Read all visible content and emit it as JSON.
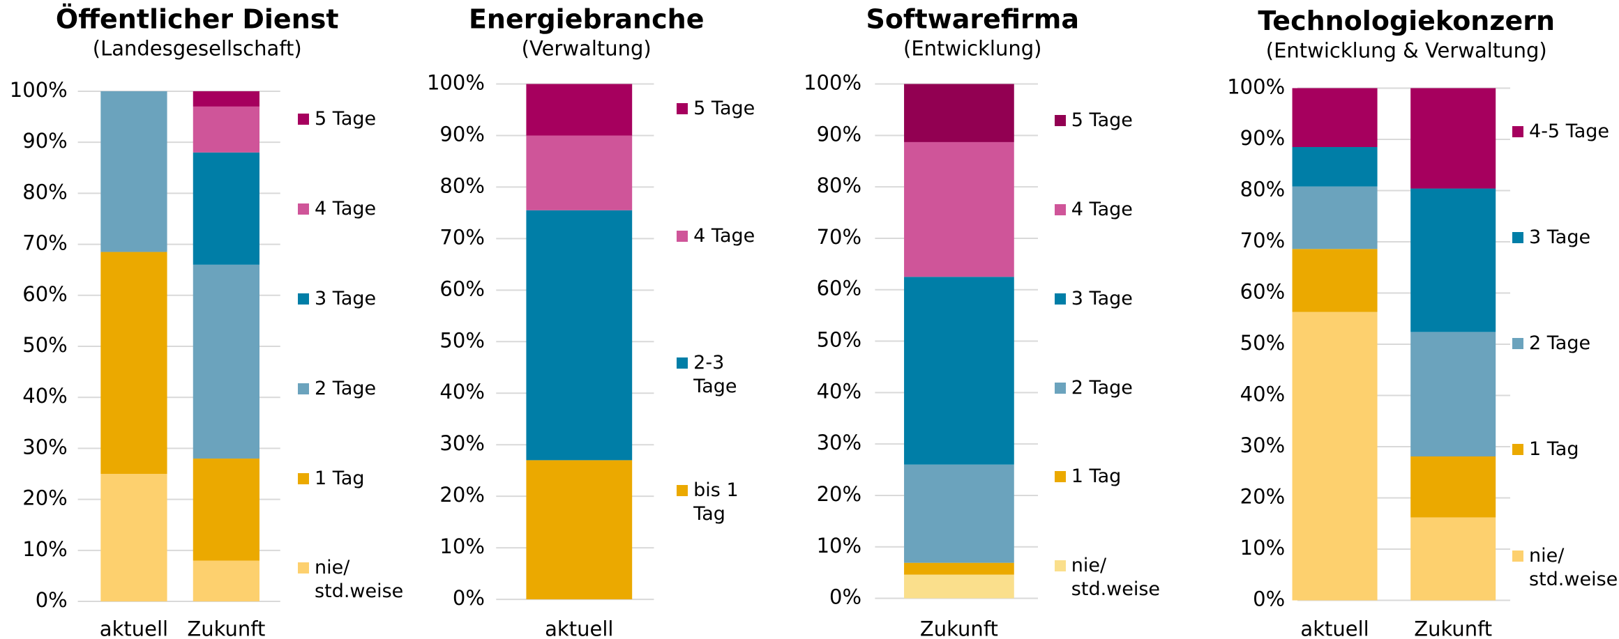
{
  "chart_data": [
    {
      "type": "stacked_bar",
      "title": "Öffentlicher Dienst",
      "subtitle": "(Landesgesellschaft)",
      "categories": [
        "aktuell",
        "Zukunft"
      ],
      "ylim": [
        0,
        100
      ],
      "yticks": [
        {
          "value": 0,
          "label": "0%"
        },
        {
          "value": 10,
          "label": "10%"
        },
        {
          "value": 20,
          "label": "20%"
        },
        {
          "value": 30,
          "label": "30%"
        },
        {
          "value": 40,
          "label": "40%"
        },
        {
          "value": 50,
          "label": "50%"
        },
        {
          "value": 60,
          "label": "60%"
        },
        {
          "value": 70,
          "label": "70%"
        },
        {
          "value": 80,
          "label": "80%"
        },
        {
          "value": 90,
          "label": "90%"
        },
        {
          "value": 100,
          "label": "100%"
        }
      ],
      "grid": true,
      "series": [
        {
          "name": "nie/ std.weise",
          "color": "#fdd06e",
          "values": [
            25,
            8
          ]
        },
        {
          "name": "1 Tag",
          "color": "#eba900",
          "values": [
            43.5,
            20
          ]
        },
        {
          "name": "2 Tage",
          "color": "#6ba3bd",
          "values": [
            31.5,
            38
          ]
        },
        {
          "name": "3 Tage",
          "color": "#007ea7",
          "values": [
            0,
            22
          ]
        },
        {
          "name": "4 Tage",
          "color": "#cf5599",
          "values": [
            0,
            9
          ]
        },
        {
          "name": "5 Tage",
          "color": "#a6005e",
          "values": [
            0,
            3
          ]
        }
      ]
    },
    {
      "type": "stacked_bar",
      "title": "Energiebranche",
      "subtitle": "(Verwaltung)",
      "categories": [
        "aktuell"
      ],
      "ylim": [
        0,
        100
      ],
      "yticks": [
        {
          "value": 0,
          "label": "0%"
        },
        {
          "value": 10,
          "label": "10%"
        },
        {
          "value": 20,
          "label": "20%"
        },
        {
          "value": 30,
          "label": "30%"
        },
        {
          "value": 40,
          "label": "40%"
        },
        {
          "value": 50,
          "label": "50%"
        },
        {
          "value": 60,
          "label": "60%"
        },
        {
          "value": 70,
          "label": "70%"
        },
        {
          "value": 80,
          "label": "80%"
        },
        {
          "value": 90,
          "label": "90%"
        },
        {
          "value": 100,
          "label": "100%"
        }
      ],
      "grid": true,
      "series": [
        {
          "name": "bis 1 Tag",
          "color": "#eba900",
          "values": [
            27
          ]
        },
        {
          "name": "2-3 Tage",
          "color": "#007ea7",
          "values": [
            48.5
          ]
        },
        {
          "name": "4 Tage",
          "color": "#cf5599",
          "values": [
            14.5
          ]
        },
        {
          "name": "5 Tage",
          "color": "#a6005e",
          "values": [
            10
          ]
        }
      ]
    },
    {
      "type": "stacked_bar",
      "title": "Softwarefirma",
      "subtitle": "(Entwicklung)",
      "categories": [
        "Zukunft"
      ],
      "ylim": [
        0,
        100
      ],
      "yticks": [
        {
          "value": 0,
          "label": "0%"
        },
        {
          "value": 10,
          "label": "10%"
        },
        {
          "value": 20,
          "label": "20%"
        },
        {
          "value": 30,
          "label": "30%"
        },
        {
          "value": 40,
          "label": "40%"
        },
        {
          "value": 50,
          "label": "50%"
        },
        {
          "value": 60,
          "label": "60%"
        },
        {
          "value": 70,
          "label": "70%"
        },
        {
          "value": 80,
          "label": "80%"
        },
        {
          "value": 90,
          "label": "90%"
        },
        {
          "value": 100,
          "label": "100%"
        }
      ],
      "grid": true,
      "series": [
        {
          "name": "nie/ std.weise",
          "color": "#fadf8c",
          "values": [
            4.6
          ]
        },
        {
          "name": "1 Tag",
          "color": "#eba900",
          "values": [
            2.3
          ]
        },
        {
          "name": "2 Tage",
          "color": "#6ba3bd",
          "values": [
            19.1
          ]
        },
        {
          "name": "3 Tage",
          "color": "#007ea7",
          "values": [
            36.5
          ]
        },
        {
          "name": "4 Tage",
          "color": "#cf5599",
          "values": [
            26.2
          ]
        },
        {
          "name": "5 Tage",
          "color": "#920052",
          "values": [
            11.3
          ]
        }
      ]
    },
    {
      "type": "stacked_bar",
      "title": "Technologiekonzern",
      "subtitle": "(Entwicklung & Verwaltung)",
      "categories": [
        "aktuell",
        "Zukunft"
      ],
      "ylim": [
        0,
        100
      ],
      "yticks": [
        {
          "value": 0,
          "label": "0%"
        },
        {
          "value": 10,
          "label": "10%"
        },
        {
          "value": 20,
          "label": "20%"
        },
        {
          "value": 30,
          "label": "30%"
        },
        {
          "value": 40,
          "label": "40%"
        },
        {
          "value": 50,
          "label": "50%"
        },
        {
          "value": 60,
          "label": "60%"
        },
        {
          "value": 70,
          "label": "70%"
        },
        {
          "value": 80,
          "label": "80%"
        },
        {
          "value": 90,
          "label": "90%"
        },
        {
          "value": 100,
          "label": "100%"
        }
      ],
      "grid": true,
      "series": [
        {
          "name": "nie/ std.weise",
          "color": "#fdd06e",
          "values": [
            56.3,
            16.2
          ]
        },
        {
          "name": "1 Tag",
          "color": "#eba900",
          "values": [
            12.3,
            11.9
          ]
        },
        {
          "name": "2 Tage",
          "color": "#6ba3bd",
          "values": [
            12.2,
            24.3
          ]
        },
        {
          "name": "3 Tage",
          "color": "#007ea7",
          "values": [
            7.7,
            28
          ]
        },
        {
          "name": "4-5 Tage",
          "color": "#a6005e",
          "values": [
            11.5,
            19.6
          ]
        }
      ]
    }
  ]
}
